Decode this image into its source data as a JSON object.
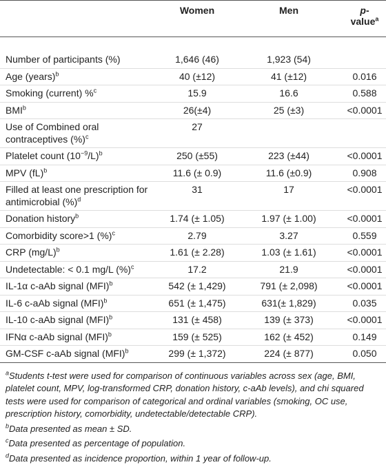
{
  "table": {
    "header": {
      "label": [
        ""
      ],
      "columns": [
        [
          "Women"
        ],
        [
          "Men"
        ],
        [
          "p",
          "-value",
          "a"
        ]
      ]
    },
    "rows": [
      {
        "label": [
          "Number of participants (%)"
        ],
        "cells": [
          "1,646 (46)",
          "1,923 (54)",
          ""
        ]
      },
      {
        "label": [
          "Age (years)",
          "b"
        ],
        "cells": [
          "40 (±12)",
          "41 (±12)",
          "0.016"
        ]
      },
      {
        "label": [
          "Smoking (current) %",
          "c"
        ],
        "cells": [
          "15.9",
          "16.6",
          "0.588"
        ]
      },
      {
        "label": [
          "BMI",
          "b"
        ],
        "cells": [
          "26(±4)",
          "25 (±3)",
          "<0.0001"
        ]
      },
      {
        "label": [
          "Use of Combined oral contraceptives (%)",
          "c"
        ],
        "cells": [
          "27",
          "",
          ""
        ]
      },
      {
        "label": [
          "Platelet count (10",
          "−9",
          "/L)",
          "b"
        ],
        "cells": [
          "250 (±55)",
          "223 (±44)",
          "<0.0001"
        ]
      },
      {
        "label": [
          "MPV (fL)",
          "b"
        ],
        "cells": [
          "11.6 (± 0.9)",
          "11.6 (±0.9)",
          "0.908"
        ]
      },
      {
        "label": [
          "Filled at least one prescription for antimicrobial (%)",
          "d"
        ],
        "cells": [
          "31",
          "17",
          "<0.0001"
        ]
      },
      {
        "label": [
          "Donation history",
          "b"
        ],
        "cells": [
          "1.74 (± 1.05)",
          "1.97 (± 1.00)",
          "<0.0001"
        ]
      },
      {
        "label": [
          "Comorbidity score>1 (%)",
          "c"
        ],
        "cells": [
          "2.79",
          "3.27",
          "0.559"
        ]
      },
      {
        "label": [
          "CRP (mg/L)",
          "b"
        ],
        "cells": [
          "1.61 (± 2.28)",
          "1.03 (± 1.61)",
          "<0.0001"
        ]
      },
      {
        "label": [
          "Undetectable: < 0.1 mg/L (%)",
          "c"
        ],
        "cells": [
          "17.2",
          "21.9",
          "<0.0001"
        ]
      },
      {
        "label": [
          "IL-1α c-aAb signal (MFI)",
          "b"
        ],
        "cells": [
          "542 (± 1,429)",
          "791 (± 2,098)",
          "<0.0001"
        ]
      },
      {
        "label": [
          "IL-6 c-aAb signal (MFI)",
          "b"
        ],
        "cells": [
          "651 (± 1,475)",
          "631(± 1,829)",
          "0.035"
        ]
      },
      {
        "label": [
          "IL-10 c-aAb signal (MFI)",
          "b"
        ],
        "cells": [
          "131 (± 458)",
          "139 (± 373)",
          "<0.0001"
        ]
      },
      {
        "label": [
          "IFNα c-aAb signal (MFI)",
          "b"
        ],
        "cells": [
          "159 (± 525)",
          "162 (± 452)",
          "0.149"
        ]
      },
      {
        "label": [
          "GM-CSF c-aAb signal (MFI)",
          "b"
        ],
        "cells": [
          "299 (± 1,372)",
          "224 (± 877)",
          "0.050"
        ]
      }
    ]
  },
  "footnotes": [
    {
      "mark": "a",
      "text": "Students t-test were used for comparison of continuous variables across sex (age, BMI, platelet count, MPV, log-transformed CRP, donation history, c-aAb levels), and chi squared tests were used for comparison of categorical and ordinal variables (smoking, OC use, prescription history, comorbidity, undetectable/detectable CRP)."
    },
    {
      "mark": "b",
      "text": "Data presented as mean ± SD."
    },
    {
      "mark": "c",
      "text": "Data presented as percentage of population."
    },
    {
      "mark": "d",
      "text": "Data presented as incidence proportion, within 1 year of follow-up."
    }
  ]
}
